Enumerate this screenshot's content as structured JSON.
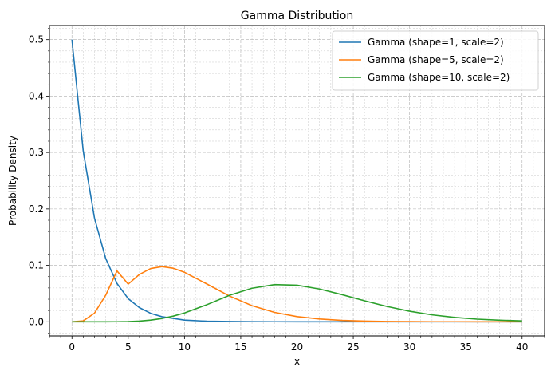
{
  "chart_data": {
    "type": "line",
    "title": "Gamma Distribution",
    "xlabel": "x",
    "ylabel": "Probability Density",
    "xlim": [
      -2,
      42
    ],
    "ylim": [
      -0.025,
      0.525
    ],
    "x_ticks": [
      0,
      5,
      10,
      15,
      20,
      25,
      30,
      35,
      40
    ],
    "x_tick_labels": [
      "0",
      "5",
      "10",
      "15",
      "20",
      "25",
      "30",
      "35",
      "40"
    ],
    "y_ticks": [
      0.0,
      0.1,
      0.2,
      0.3,
      0.4,
      0.5
    ],
    "y_tick_labels": [
      "0.0",
      "0.1",
      "0.2",
      "0.3",
      "0.4",
      "0.5"
    ],
    "grid": "on (major and minor, dashed)",
    "legend_position": "top-right",
    "x": [
      0,
      1,
      2,
      3,
      4,
      5,
      6,
      7,
      8,
      9,
      10,
      12,
      14,
      16,
      18,
      20,
      22,
      24,
      26,
      28,
      30,
      32,
      34,
      36,
      38,
      40
    ],
    "series": [
      {
        "name": "Gamma (shape=1, scale=2)",
        "color": "#1f77b4",
        "values": [
          0.5,
          0.303,
          0.184,
          0.112,
          0.068,
          0.041,
          0.025,
          0.015,
          0.009,
          0.006,
          0.003,
          0.001,
          0.0005,
          0.0002,
          0.0001,
          0.0,
          0.0,
          0.0,
          0.0,
          0.0,
          0.0,
          0.0,
          0.0,
          0.0,
          0.0,
          0.0
        ]
      },
      {
        "name": "Gamma (shape=5, scale=2)",
        "color": "#ff7f0e",
        "values": [
          0.0,
          0.0016,
          0.0153,
          0.0471,
          0.0902,
          0.0668,
          0.084,
          0.0944,
          0.0977,
          0.0949,
          0.0877,
          0.0669,
          0.0456,
          0.0286,
          0.0167,
          0.0092,
          0.0049,
          0.0025,
          0.0012,
          0.0006,
          0.0003,
          0.0001,
          0.0001,
          0.0,
          0.0,
          0.0
        ]
      },
      {
        "name": "Gamma (shape=10, scale=2)",
        "color": "#2ca02c",
        "values": [
          0.0,
          0.0,
          0.0,
          0.0,
          0.0001,
          0.0004,
          0.0013,
          0.003,
          0.0059,
          0.0101,
          0.0157,
          0.0304,
          0.0469,
          0.0595,
          0.0659,
          0.0649,
          0.0581,
          0.0481,
          0.0372,
          0.0271,
          0.0187,
          0.0123,
          0.0078,
          0.0047,
          0.0028,
          0.0016
        ]
      }
    ]
  }
}
